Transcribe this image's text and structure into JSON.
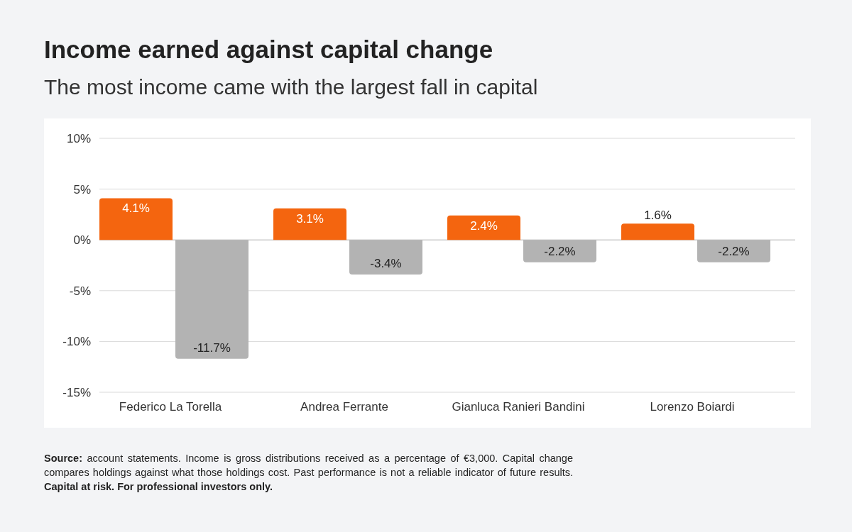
{
  "chart_data": {
    "type": "bar",
    "title": "Income earned against capital change",
    "subtitle": "The most income came with the largest fall in capital",
    "categories": [
      "Federico La Torella",
      "Andrea Ferrante",
      "Gianluca Ranieri Bandini",
      "Lorenzo Boiardi"
    ],
    "series": [
      {
        "color": "#f4650f",
        "values": [
          4.1,
          3.1,
          2.4,
          1.6
        ],
        "value_labels": [
          "4.1%",
          "3.1%",
          "2.4%",
          "1.6%"
        ]
      },
      {
        "color": "#b3b3b3",
        "values": [
          -11.7,
          -3.4,
          -2.2,
          -2.2
        ],
        "value_labels": [
          "-11.7%",
          "-3.4%",
          "-2.2%",
          "-2.2%"
        ]
      }
    ],
    "ylim": [
      -15,
      10
    ],
    "yticks": [
      {
        "value": -15,
        "label": "-15%"
      },
      {
        "value": -10,
        "label": "-10%"
      },
      {
        "value": -5,
        "label": "-5%"
      },
      {
        "value": 0,
        "label": "0%"
      },
      {
        "value": 5,
        "label": "5%"
      },
      {
        "value": 10,
        "label": "10%"
      }
    ],
    "grid": "y",
    "annotations": [
      "Source: account statements. Income is gross distributions received as a percentage of €3,000. Capital change compares holdings against what those holdings cost. Past performance is not a reliable indicator of future results.",
      "Capital at risk. For professional investors only."
    ]
  }
}
